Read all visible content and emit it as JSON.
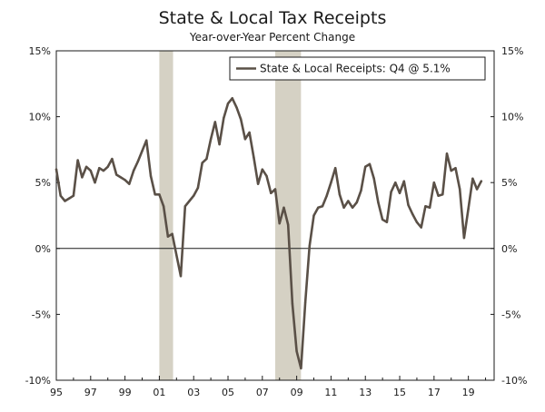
{
  "chart_data": {
    "type": "line",
    "title": "State & Local Tax Receipts",
    "subtitle": "Year-over-Year Percent Change",
    "xlabel": "",
    "ylabel": "",
    "grid": false,
    "legend_position": "top-right",
    "xlim": [
      1995,
      2020.5
    ],
    "ylim": [
      -10,
      15
    ],
    "yticks": [
      -10,
      -5,
      0,
      5,
      10,
      15
    ],
    "ytick_labels": [
      "-10%",
      "-5%",
      "0%",
      "5%",
      "10%",
      "15%"
    ],
    "xticks": [
      1995,
      1997,
      1999,
      2001,
      2003,
      2005,
      2007,
      2009,
      2011,
      2013,
      2015,
      2017,
      2019
    ],
    "xtick_labels": [
      "95",
      "97",
      "99",
      "01",
      "03",
      "05",
      "07",
      "09",
      "11",
      "13",
      "15",
      "17",
      "19"
    ],
    "recessions": [
      {
        "start": 2001.0,
        "end": 2001.8
      },
      {
        "start": 2007.75,
        "end": 2009.25
      }
    ],
    "series": [
      {
        "name": "State & Local Receipts: Q4 @ 5.1%",
        "color": "#5a5047",
        "x": [
          1995.0,
          1995.25,
          1995.5,
          1995.75,
          1996.0,
          1996.25,
          1996.5,
          1996.75,
          1997.0,
          1997.25,
          1997.5,
          1997.75,
          1998.0,
          1998.25,
          1998.5,
          1998.75,
          1999.0,
          1999.25,
          1999.5,
          1999.75,
          2000.0,
          2000.25,
          2000.5,
          2000.75,
          2001.0,
          2001.25,
          2001.5,
          2001.75,
          2002.0,
          2002.25,
          2002.5,
          2002.75,
          2003.0,
          2003.25,
          2003.5,
          2003.75,
          2004.0,
          2004.25,
          2004.5,
          2004.75,
          2005.0,
          2005.25,
          2005.5,
          2005.75,
          2006.0,
          2006.25,
          2006.5,
          2006.75,
          2007.0,
          2007.25,
          2007.5,
          2007.75,
          2008.0,
          2008.25,
          2008.5,
          2008.75,
          2009.0,
          2009.25,
          2009.5,
          2009.75,
          2010.0,
          2010.25,
          2010.5,
          2010.75,
          2011.0,
          2011.25,
          2011.5,
          2011.75,
          2012.0,
          2012.25,
          2012.5,
          2012.75,
          2013.0,
          2013.25,
          2013.5,
          2013.75,
          2014.0,
          2014.25,
          2014.5,
          2014.75,
          2015.0,
          2015.25,
          2015.5,
          2015.75,
          2016.0,
          2016.25,
          2016.5,
          2016.75,
          2017.0,
          2017.25,
          2017.5,
          2017.75,
          2018.0,
          2018.25,
          2018.5,
          2018.75,
          2019.0,
          2019.25,
          2019.5,
          2019.75
        ],
        "values": [
          6.0,
          4.0,
          3.6,
          3.8,
          4.0,
          6.7,
          5.4,
          6.2,
          5.9,
          5.0,
          6.1,
          5.9,
          6.2,
          6.8,
          5.6,
          5.4,
          5.2,
          4.9,
          5.9,
          6.6,
          7.4,
          8.2,
          5.5,
          4.1,
          4.1,
          3.2,
          0.9,
          1.1,
          -0.5,
          -2.1,
          3.2,
          3.6,
          4.0,
          4.6,
          6.5,
          6.8,
          8.3,
          9.6,
          7.9,
          9.9,
          11.0,
          11.4,
          10.7,
          9.8,
          8.3,
          8.8,
          6.9,
          4.9,
          6.0,
          5.5,
          4.2,
          4.5,
          1.9,
          3.1,
          1.8,
          -4.2,
          -7.8,
          -9.1,
          -4.1,
          0.2,
          2.5,
          3.1,
          3.2,
          4.0,
          5.0,
          6.1,
          4.1,
          3.1,
          3.6,
          3.1,
          3.5,
          4.4,
          6.2,
          6.4,
          5.3,
          3.5,
          2.2,
          2.0,
          4.3,
          5.0,
          4.2,
          5.1,
          3.3,
          2.6,
          2.0,
          1.6,
          3.2,
          3.1,
          5.0,
          4.0,
          4.1,
          7.2,
          5.9,
          6.1,
          4.5,
          0.8,
          3.0,
          5.3,
          4.5,
          5.1
        ]
      }
    ]
  }
}
